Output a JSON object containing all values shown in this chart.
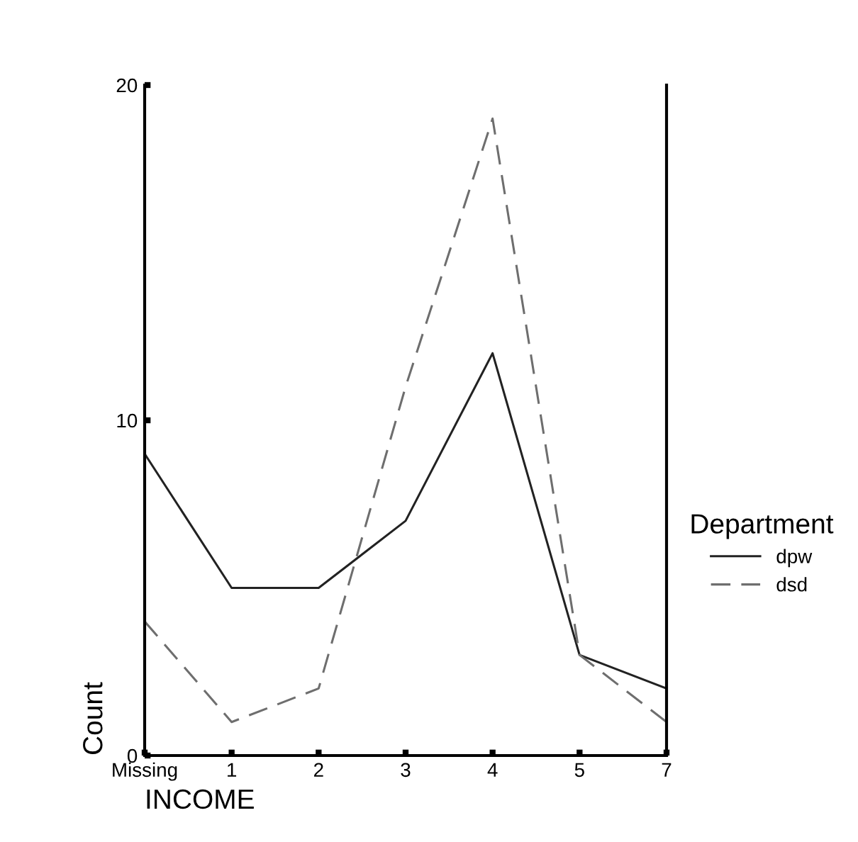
{
  "chart_data": {
    "type": "line",
    "xlabel": "INCOME",
    "ylabel": "Count",
    "legend_title": "Department",
    "categories": [
      "Missing",
      "1",
      "2",
      "3",
      "4",
      "5",
      "7"
    ],
    "series": [
      {
        "name": "dpw",
        "color": "#222222",
        "line_style": "solid",
        "values": [
          9,
          5,
          5,
          7,
          12,
          3,
          2
        ]
      },
      {
        "name": "dsd",
        "color": "#6e6e6e",
        "line_style": "dashed",
        "values": [
          4,
          1,
          2,
          11,
          19,
          3,
          1
        ]
      }
    ],
    "ylim": [
      0,
      20
    ],
    "yticks": [
      0,
      10,
      20
    ],
    "grid": false,
    "legend": "right",
    "marker": "none"
  }
}
